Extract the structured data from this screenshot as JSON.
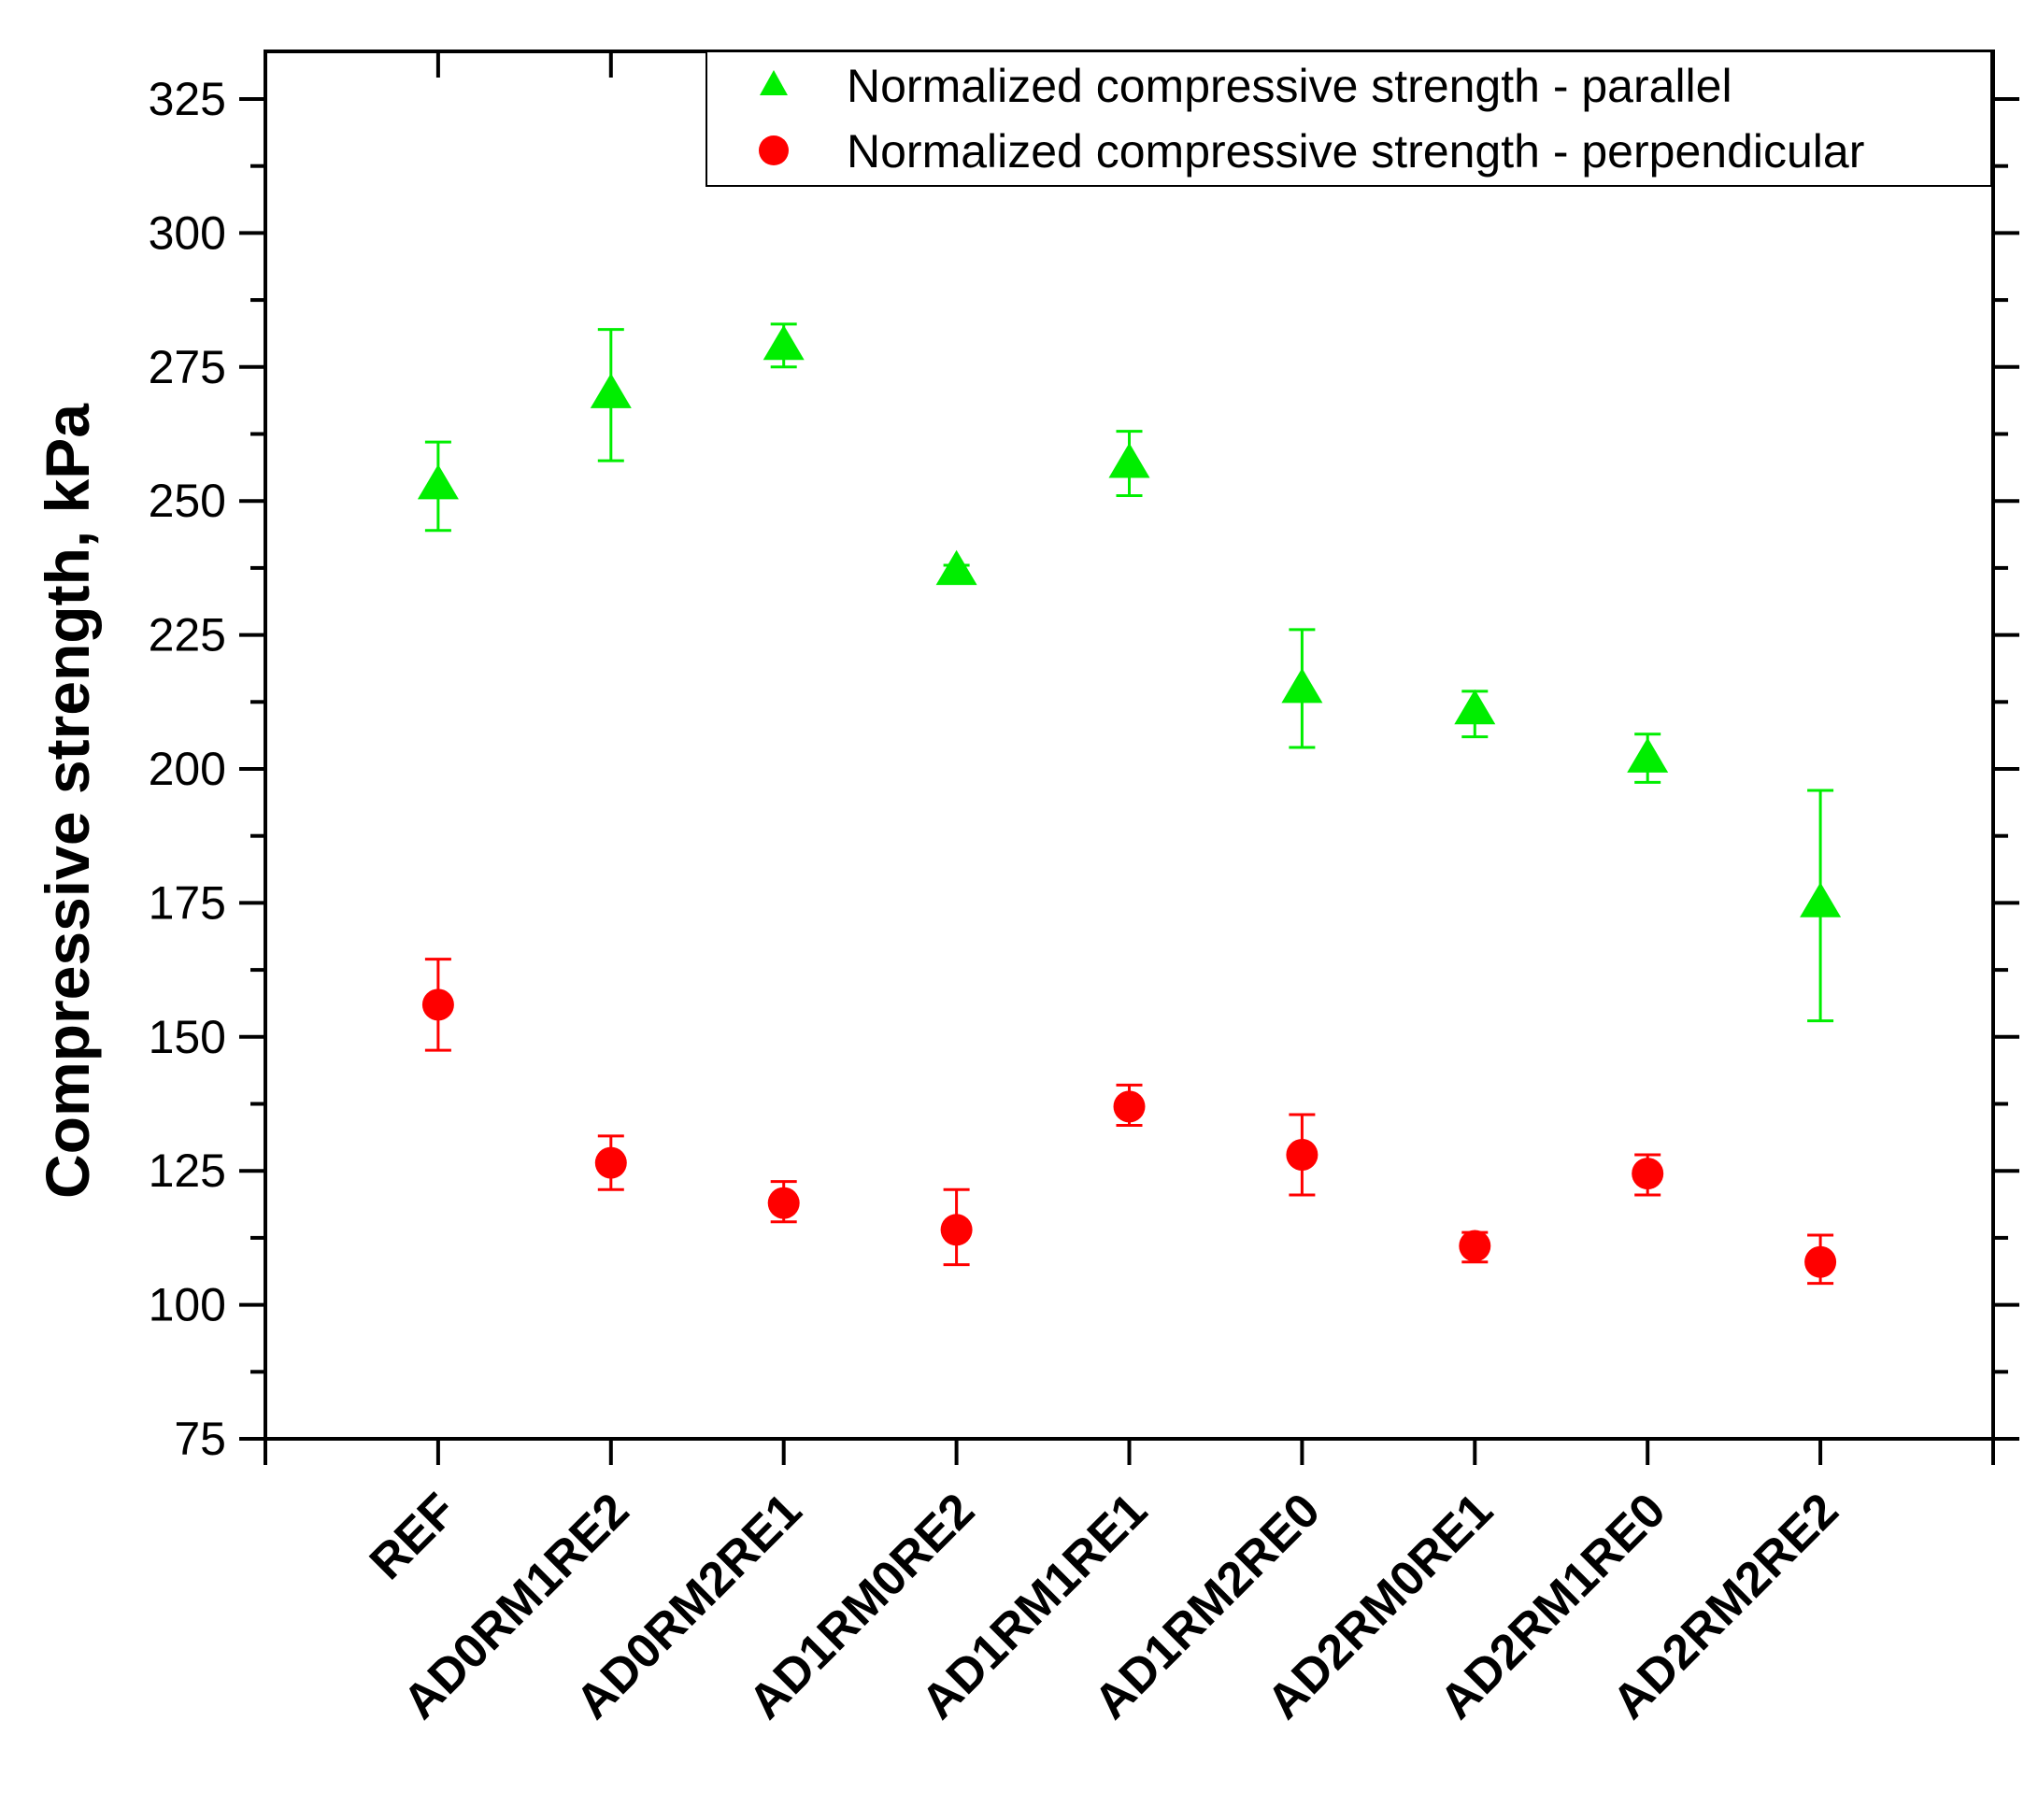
{
  "chart_data": {
    "type": "scatter",
    "title": "",
    "xlabel": "",
    "ylabel": "Compressive strength, kPa",
    "ylim": [
      75,
      325
    ],
    "yticks": [
      75,
      100,
      125,
      150,
      175,
      200,
      225,
      250,
      275,
      300,
      325
    ],
    "categories": [
      "REF",
      "AD0RM1RE2",
      "AD0RM2RE1",
      "AD1RM0RE2",
      "AD1RM1RE1",
      "AD1RM2RE0",
      "AD2RM0RE1",
      "AD2RM1RE0",
      "AD2RM2RE2"
    ],
    "legend_position": "top-right",
    "series": [
      {
        "name": "Normalized compressive strength - parallel",
        "marker": "triangle",
        "color": "#00ee00",
        "values": [
          253,
          270,
          279,
          237,
          257,
          215,
          211,
          202,
          175
        ],
        "err_low": [
          244.5,
          257.5,
          275,
          235,
          251,
          204,
          206,
          197.5,
          153
        ],
        "err_high": [
          261,
          282,
          283,
          238,
          263,
          226,
          214.5,
          206.5,
          196
        ]
      },
      {
        "name": "Normalized compressive strength - perpendicular",
        "marker": "circle",
        "color": "#ff0000",
        "values": [
          156,
          126.5,
          119,
          114,
          137,
          128,
          111,
          124.5,
          108
        ],
        "err_low": [
          147.5,
          121.5,
          115.5,
          107.5,
          133.5,
          120.5,
          108,
          120.5,
          104
        ],
        "err_high": [
          164.5,
          131.5,
          123,
          121.5,
          141,
          135.5,
          113.5,
          128,
          113
        ]
      }
    ]
  }
}
